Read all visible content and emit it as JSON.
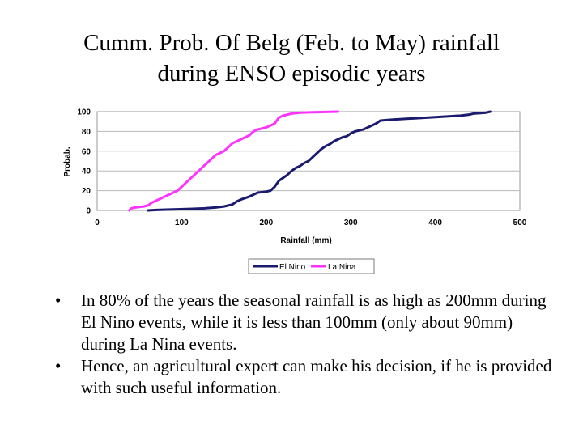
{
  "slide": {
    "title_line1": "Cumm. Prob. Of Belg (Feb. to May) rainfall",
    "title_line2": "during ENSO episodic years",
    "bullets": [
      "In 80% of the years the seasonal rainfall is as high as 200mm during El Nino events, while it is less than 100mm (only about 90mm) during La Nina events.",
      "Hence, an agricultural expert can make his decision, if he is provided with such useful information."
    ],
    "bullet_glyph": "•"
  },
  "chart_data": {
    "type": "line",
    "title": "",
    "xlabel": "Rainfall (mm)",
    "ylabel": "Probab.",
    "xlim": [
      0,
      500
    ],
    "ylim": [
      0,
      100
    ],
    "xticks": [
      0,
      100,
      200,
      300,
      400,
      500
    ],
    "yticks": [
      0,
      20,
      40,
      60,
      80,
      100
    ],
    "grid": true,
    "legend": "bottom-center",
    "series": [
      {
        "name": "El Nino",
        "color": "#1a1a6e",
        "points": [
          [
            60,
            0
          ],
          [
            70,
            0.5
          ],
          [
            90,
            1
          ],
          [
            110,
            1.5
          ],
          [
            125,
            2
          ],
          [
            140,
            3
          ],
          [
            150,
            4
          ],
          [
            160,
            6
          ],
          [
            165,
            9
          ],
          [
            170,
            11
          ],
          [
            180,
            14
          ],
          [
            190,
            18
          ],
          [
            200,
            19
          ],
          [
            205,
            20
          ],
          [
            210,
            24
          ],
          [
            215,
            30
          ],
          [
            220,
            33
          ],
          [
            225,
            36
          ],
          [
            230,
            40
          ],
          [
            235,
            43
          ],
          [
            240,
            45
          ],
          [
            245,
            48
          ],
          [
            250,
            50
          ],
          [
            255,
            54
          ],
          [
            260,
            58
          ],
          [
            265,
            62
          ],
          [
            270,
            65
          ],
          [
            275,
            67
          ],
          [
            280,
            70
          ],
          [
            285,
            72
          ],
          [
            290,
            74
          ],
          [
            295,
            75
          ],
          [
            300,
            78
          ],
          [
            305,
            80
          ],
          [
            310,
            81
          ],
          [
            315,
            82
          ],
          [
            320,
            84
          ],
          [
            325,
            86
          ],
          [
            330,
            88
          ],
          [
            335,
            91
          ],
          [
            350,
            92
          ],
          [
            370,
            93
          ],
          [
            390,
            94
          ],
          [
            410,
            95
          ],
          [
            430,
            96
          ],
          [
            440,
            97
          ],
          [
            445,
            98
          ],
          [
            460,
            99
          ],
          [
            465,
            100
          ]
        ]
      },
      {
        "name": "La Nina",
        "color": "#ff33ff",
        "points": [
          [
            38,
            0
          ],
          [
            40,
            2
          ],
          [
            45,
            3
          ],
          [
            55,
            4
          ],
          [
            60,
            5
          ],
          [
            65,
            8
          ],
          [
            70,
            10
          ],
          [
            75,
            12
          ],
          [
            80,
            14
          ],
          [
            85,
            16
          ],
          [
            90,
            18
          ],
          [
            95,
            20
          ],
          [
            100,
            24
          ],
          [
            105,
            28
          ],
          [
            110,
            32
          ],
          [
            115,
            36
          ],
          [
            120,
            40
          ],
          [
            125,
            44
          ],
          [
            130,
            48
          ],
          [
            135,
            52
          ],
          [
            140,
            56
          ],
          [
            145,
            58
          ],
          [
            150,
            60
          ],
          [
            155,
            64
          ],
          [
            160,
            68
          ],
          [
            165,
            70
          ],
          [
            170,
            72
          ],
          [
            175,
            74
          ],
          [
            180,
            76
          ],
          [
            185,
            80
          ],
          [
            190,
            82
          ],
          [
            195,
            83
          ],
          [
            200,
            84
          ],
          [
            205,
            86
          ],
          [
            210,
            88
          ],
          [
            215,
            94
          ],
          [
            220,
            96
          ],
          [
            225,
            97
          ],
          [
            230,
            98
          ],
          [
            240,
            99
          ],
          [
            260,
            99.5
          ],
          [
            285,
            100
          ]
        ]
      }
    ]
  }
}
